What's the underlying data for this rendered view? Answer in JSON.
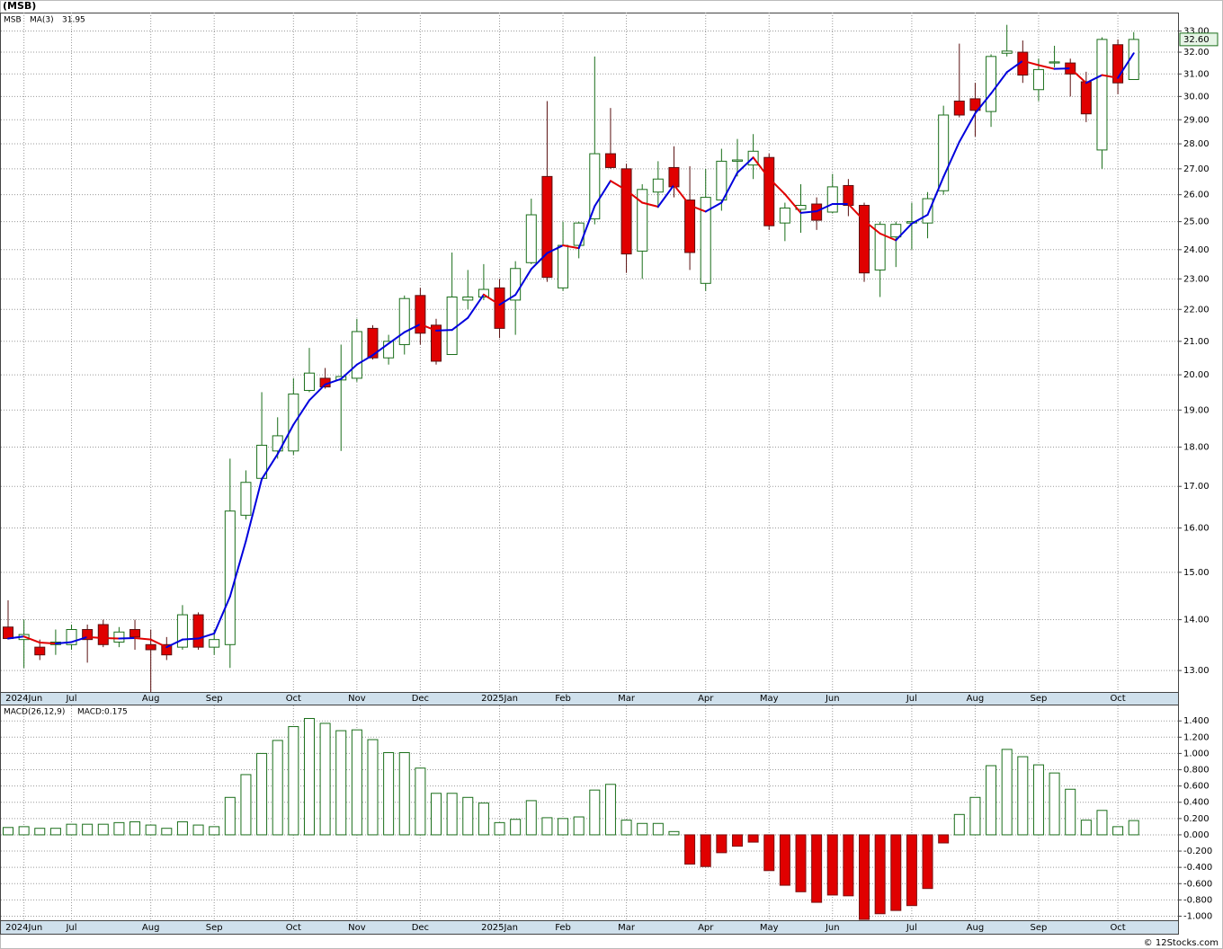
{
  "title": "(MSB)",
  "footer": "© 12Stocks.com",
  "chart_data": [
    {
      "type": "candlestick",
      "log_scale": true,
      "grid": true,
      "categories": [
        null,
        "2024Jun",
        null,
        null,
        "Jul",
        null,
        null,
        null,
        null,
        "Aug",
        null,
        null,
        null,
        "Sep",
        null,
        null,
        null,
        null,
        "Oct",
        null,
        null,
        null,
        "Nov",
        null,
        null,
        null,
        "Dec",
        null,
        null,
        null,
        null,
        "2025Jan",
        null,
        null,
        null,
        "Feb",
        null,
        null,
        null,
        "Mar",
        null,
        null,
        null,
        null,
        "Apr",
        null,
        null,
        null,
        "May",
        null,
        null,
        null,
        "Jun",
        null,
        null,
        null,
        null,
        "Jul",
        null,
        null,
        null,
        "Aug",
        null,
        null,
        null,
        "Sep",
        null,
        null,
        null,
        null,
        "Oct",
        null
      ],
      "series": [
        {
          "name": "MSB",
          "up_color": "#1a6e1a",
          "down_color": "#e00000",
          "open": [
            13.85,
            13.6,
            13.45,
            13.5,
            13.5,
            13.8,
            13.9,
            13.55,
            13.8,
            13.5,
            13.5,
            13.45,
            14.1,
            13.45,
            13.5,
            16.3,
            17.2,
            17.9,
            17.9,
            19.55,
            19.9,
            19.85,
            19.9,
            21.4,
            20.5,
            20.9,
            22.45,
            21.5,
            20.6,
            22.3,
            22.4,
            22.7,
            22.3,
            23.55,
            26.7,
            22.7,
            24.15,
            25.1,
            27.6,
            27.0,
            23.95,
            26.1,
            27.05,
            25.8,
            22.85,
            25.8,
            27.3,
            27.15,
            27.45,
            24.95,
            25.45,
            25.65,
            25.35,
            26.35,
            25.6,
            23.3,
            24.45,
            24.95,
            24.95,
            26.15,
            29.8,
            29.9,
            29.35,
            31.95,
            32.0,
            30.3,
            31.5,
            31.5,
            30.65,
            27.75,
            32.35,
            30.75
          ],
          "high": [
            14.4,
            14.0,
            13.6,
            13.8,
            13.9,
            13.9,
            14.0,
            13.85,
            14.0,
            13.8,
            13.65,
            14.3,
            14.15,
            13.8,
            17.7,
            17.4,
            19.5,
            18.8,
            19.9,
            20.8,
            20.2,
            20.9,
            21.7,
            21.5,
            21.2,
            22.45,
            22.7,
            21.7,
            23.9,
            23.3,
            23.5,
            23.0,
            23.6,
            25.85,
            29.8,
            25.0,
            25.0,
            31.8,
            29.5,
            27.2,
            26.4,
            27.3,
            27.9,
            27.1,
            27.0,
            27.8,
            28.2,
            28.4,
            27.6,
            25.7,
            26.4,
            25.9,
            26.8,
            26.6,
            25.7,
            25.0,
            25.0,
            25.7,
            26.1,
            29.6,
            32.4,
            30.6,
            31.9,
            33.3,
            32.55,
            31.7,
            32.3,
            31.7,
            31.1,
            32.7,
            32.6,
            32.95
          ],
          "low": [
            13.6,
            13.05,
            13.2,
            13.3,
            13.4,
            13.15,
            13.45,
            13.45,
            13.4,
            12.6,
            13.2,
            13.4,
            13.4,
            13.3,
            13.05,
            16.2,
            17.2,
            17.7,
            17.8,
            19.5,
            19.6,
            17.9,
            19.8,
            20.45,
            20.3,
            20.6,
            20.9,
            20.3,
            20.6,
            22.0,
            22.3,
            21.1,
            21.2,
            23.5,
            22.9,
            22.6,
            23.7,
            24.9,
            27.0,
            23.2,
            23.0,
            25.5,
            25.9,
            23.3,
            22.6,
            25.4,
            26.7,
            26.6,
            24.7,
            24.3,
            24.6,
            24.7,
            25.3,
            25.2,
            22.9,
            22.4,
            23.4,
            24.0,
            24.4,
            26.0,
            29.1,
            28.3,
            28.7,
            31.8,
            30.6,
            29.8,
            31.3,
            30.0,
            28.9,
            27.0,
            30.1,
            30.75
          ],
          "close": [
            13.62,
            13.7,
            13.3,
            13.55,
            13.8,
            13.6,
            13.5,
            13.75,
            13.65,
            13.4,
            13.3,
            14.1,
            13.45,
            13.6,
            16.4,
            17.1,
            18.05,
            18.3,
            19.45,
            20.05,
            19.65,
            19.95,
            21.3,
            20.5,
            21.0,
            22.35,
            21.25,
            20.4,
            22.4,
            22.4,
            22.65,
            21.4,
            23.35,
            25.25,
            23.05,
            24.15,
            24.95,
            27.6,
            27.05,
            23.85,
            26.2,
            26.6,
            26.3,
            23.9,
            25.9,
            27.3,
            27.35,
            27.7,
            24.85,
            25.5,
            25.6,
            25.05,
            26.3,
            25.6,
            23.2,
            24.9,
            24.9,
            25.0,
            25.85,
            29.2,
            29.2,
            29.4,
            31.8,
            32.05,
            30.95,
            31.2,
            31.55,
            31.0,
            29.25,
            32.6,
            30.6,
            32.6
          ],
          "last": {
            "value": 32.6,
            "label": "32.60"
          }
        },
        {
          "name": "MA(3)",
          "up_color": "#0000dd",
          "down_color": "#e00000",
          "values": [
            13.62,
            13.66,
            13.54,
            13.52,
            13.55,
            13.65,
            13.63,
            13.62,
            13.63,
            13.6,
            13.45,
            13.6,
            13.62,
            13.72,
            14.48,
            15.7,
            17.18,
            17.82,
            18.6,
            19.27,
            19.72,
            19.88,
            20.3,
            20.58,
            20.93,
            21.28,
            21.53,
            21.33,
            21.35,
            21.73,
            22.48,
            22.15,
            22.47,
            23.33,
            23.88,
            24.15,
            24.05,
            25.57,
            26.53,
            26.17,
            25.7,
            25.55,
            26.37,
            25.6,
            25.37,
            25.7,
            26.85,
            27.45,
            26.63,
            26.02,
            25.32,
            25.38,
            25.65,
            25.65,
            25.03,
            24.57,
            24.33,
            24.93,
            25.25,
            26.68,
            28.08,
            29.27,
            30.13,
            31.08,
            31.6,
            31.4,
            31.23,
            31.25,
            30.6,
            30.95,
            30.82,
            31.95
          ],
          "last": {
            "value": 31.95,
            "label": "31.95"
          }
        }
      ],
      "ylim": [
        12.6,
        33.9
      ],
      "yticks": [
        {
          "value": 13,
          "label": "13.00"
        },
        {
          "value": 14,
          "label": "14.00"
        },
        {
          "value": 15,
          "label": "15.00"
        },
        {
          "value": 16,
          "label": "16.00"
        },
        {
          "value": 17,
          "label": "17.00"
        },
        {
          "value": 18,
          "label": "18.00"
        },
        {
          "value": 19,
          "label": "19.00"
        },
        {
          "value": 20,
          "label": "20.00"
        },
        {
          "value": 21,
          "label": "21.00"
        },
        {
          "value": 22,
          "label": "22.00"
        },
        {
          "value": 23,
          "label": "23.00"
        },
        {
          "value": 24,
          "label": "24.00"
        },
        {
          "value": 25,
          "label": "25.00"
        },
        {
          "value": 26,
          "label": "26.00"
        },
        {
          "value": 27,
          "label": "27.00"
        },
        {
          "value": 28,
          "label": "28.00"
        },
        {
          "value": 29,
          "label": "29.00"
        },
        {
          "value": 30,
          "label": "30.00"
        },
        {
          "value": 31,
          "label": "31.00"
        },
        {
          "value": 32,
          "label": "32.00"
        },
        {
          "value": 33,
          "label": "33.00"
        }
      ]
    },
    {
      "type": "bar",
      "grid": true,
      "name": "MACD(26,12,9)",
      "current": {
        "value": 0.175,
        "label": "MACD:0.175"
      },
      "up_color": "#1a6e1a",
      "down_color": "#e00000",
      "categories": [
        null,
        "2024Jun",
        null,
        null,
        "Jul",
        null,
        null,
        null,
        null,
        "Aug",
        null,
        null,
        null,
        "Sep",
        null,
        null,
        null,
        null,
        "Oct",
        null,
        null,
        null,
        "Nov",
        null,
        null,
        null,
        "Dec",
        null,
        null,
        null,
        null,
        "2025Jan",
        null,
        null,
        null,
        "Feb",
        null,
        null,
        null,
        "Mar",
        null,
        null,
        null,
        null,
        "Apr",
        null,
        null,
        null,
        "May",
        null,
        null,
        null,
        "Jun",
        null,
        null,
        null,
        null,
        "Jul",
        null,
        null,
        null,
        "Aug",
        null,
        null,
        null,
        "Sep",
        null,
        null,
        null,
        null,
        "Oct",
        null
      ],
      "values": [
        0.09,
        0.1,
        0.08,
        0.08,
        0.13,
        0.13,
        0.13,
        0.15,
        0.16,
        0.12,
        0.08,
        0.16,
        0.12,
        0.1,
        0.46,
        0.74,
        1,
        1.16,
        1.33,
        1.43,
        1.37,
        1.28,
        1.29,
        1.17,
        1.01,
        1.01,
        0.82,
        0.51,
        0.51,
        0.46,
        0.39,
        0.15,
        0.19,
        0.42,
        0.21,
        0.2,
        0.22,
        0.55,
        0.62,
        0.18,
        0.14,
        0.14,
        0.04,
        -0.36,
        -0.39,
        -0.22,
        -0.14,
        -0.09,
        -0.44,
        -0.62,
        -0.7,
        -0.83,
        -0.74,
        -0.75,
        -1.04,
        -0.97,
        -0.93,
        -0.87,
        -0.66,
        -0.1,
        0.25,
        0.46,
        0.85,
        1.05,
        0.96,
        0.86,
        0.76,
        0.56,
        0.18,
        0.3,
        0.1,
        0.175
      ],
      "ylim": [
        -1.05,
        1.59
      ],
      "yticks": [
        {
          "value": 1.4,
          "label": "1.400"
        },
        {
          "value": 1.2,
          "label": "1.200"
        },
        {
          "value": 1,
          "label": "1.000"
        },
        {
          "value": 0.8,
          "label": "0.800"
        },
        {
          "value": 0.6,
          "label": "0.600"
        },
        {
          "value": 0.4,
          "label": "0.400"
        },
        {
          "value": 0.2,
          "label": "0.200"
        },
        {
          "value": 0,
          "label": "0.000"
        },
        {
          "value": -0.2,
          "label": "-0.200"
        },
        {
          "value": -0.4,
          "label": "-0.400"
        },
        {
          "value": -0.6,
          "label": "-0.600"
        },
        {
          "value": -0.8,
          "label": "-0.800"
        },
        {
          "value": -1,
          "label": "-1.000"
        }
      ]
    }
  ]
}
